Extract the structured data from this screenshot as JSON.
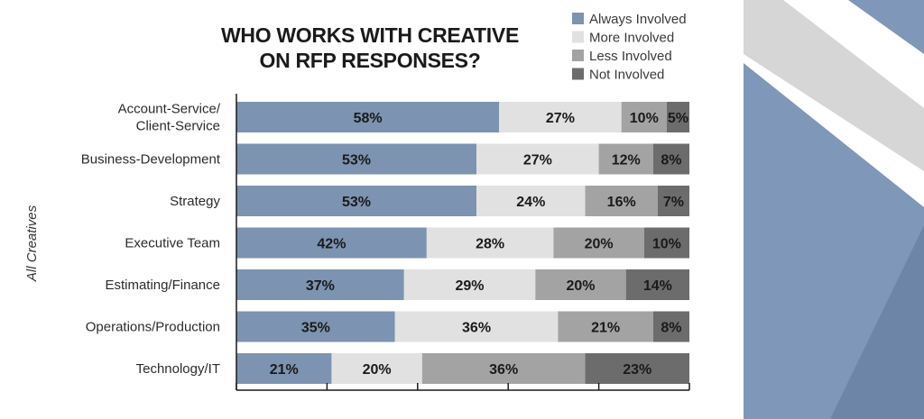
{
  "chart_data": {
    "type": "bar",
    "orientation": "horizontal",
    "stacked": true,
    "title": [
      "WHO WORKS WITH CREATIVE",
      "ON RFP RESPONSES?"
    ],
    "ylabel": "All Creatives",
    "xlim": [
      0,
      100
    ],
    "value_suffix": "%",
    "legend_position": "top-right",
    "categories": [
      [
        "Account-Service/",
        "Client-Service"
      ],
      [
        "Business-Development"
      ],
      [
        "Strategy"
      ],
      [
        "Executive Team"
      ],
      [
        "Estimating/Finance"
      ],
      [
        "Operations/Production"
      ],
      [
        "Technology/IT"
      ]
    ],
    "series": [
      {
        "name": "Always Involved",
        "color": "#7c93b1",
        "values": [
          58,
          53,
          53,
          42,
          37,
          35,
          21
        ]
      },
      {
        "name": "More Involved",
        "color": "#e1e1e1",
        "values": [
          27,
          27,
          24,
          28,
          29,
          36,
          20
        ]
      },
      {
        "name": "Less Involved",
        "color": "#a3a3a3",
        "values": [
          10,
          12,
          16,
          20,
          20,
          21,
          36
        ]
      },
      {
        "name": "Not Involved",
        "color": "#6c6c6c",
        "values": [
          5,
          8,
          7,
          10,
          14,
          8,
          23
        ]
      }
    ]
  },
  "colors": {
    "decor_blue": "#7f97b8",
    "decor_blue_dark": "#6d86a8",
    "decor_gray": "#d6d6d6",
    "axis": "#1a1a1a"
  }
}
